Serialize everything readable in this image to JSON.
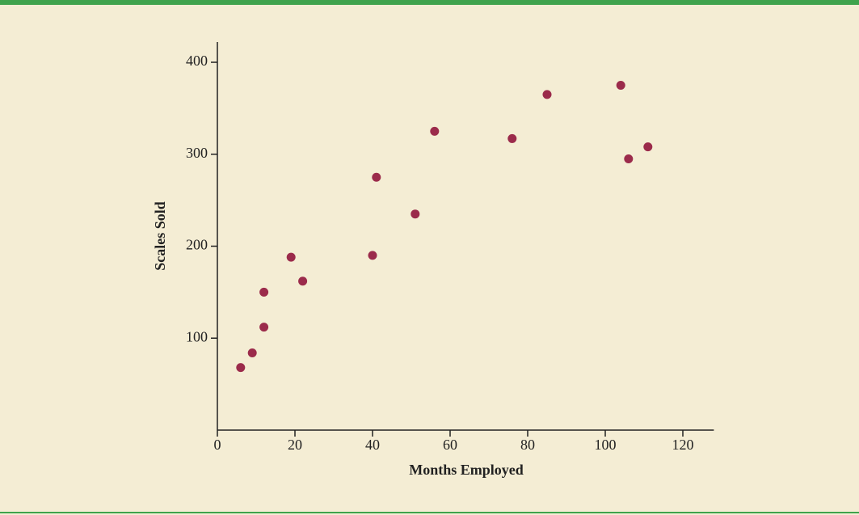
{
  "chart_data": {
    "type": "scatter",
    "xlabel": "Months Employed",
    "ylabel": "Scales Sold",
    "x": [
      6,
      9,
      12,
      12,
      19,
      22,
      40,
      41,
      51,
      56,
      76,
      85,
      104,
      106,
      111
    ],
    "values": [
      68,
      84,
      150,
      112,
      188,
      162,
      190,
      275,
      235,
      325,
      317,
      365,
      375,
      295,
      308
    ],
    "color": "#9b2b4b",
    "xlim": [
      0,
      128
    ],
    "xticks": [
      0,
      20,
      40,
      60,
      80,
      100,
      120
    ],
    "ylim": [
      0,
      422
    ],
    "yticks": [
      100,
      200,
      300,
      400
    ]
  }
}
